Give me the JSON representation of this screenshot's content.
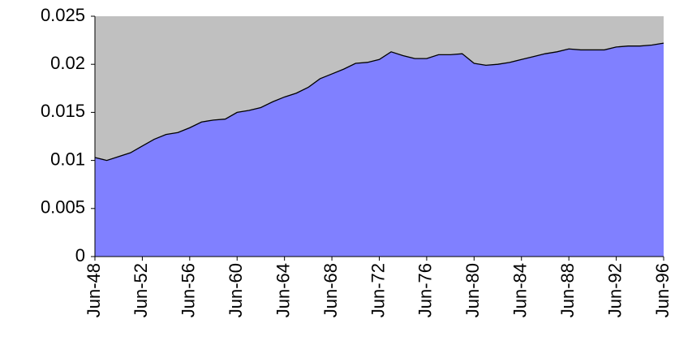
{
  "chart_data": {
    "type": "area",
    "categories": [
      "Jun-48",
      null,
      null,
      null,
      "Jun-52",
      null,
      null,
      null,
      "Jun-56",
      null,
      null,
      null,
      "Jun-60",
      null,
      null,
      null,
      "Jun-64",
      null,
      null,
      null,
      "Jun-68",
      null,
      null,
      null,
      "Jun-72",
      null,
      null,
      null,
      "Jun-76",
      null,
      null,
      null,
      "Jun-80",
      null,
      null,
      null,
      "Jun-84",
      null,
      null,
      null,
      "Jun-88",
      null,
      null,
      null,
      "Jun-92",
      null,
      null,
      null,
      "Jun-96"
    ],
    "values": [
      0.0103,
      0.01,
      0.0104,
      0.0108,
      0.0115,
      0.0122,
      0.0127,
      0.0129,
      0.0134,
      0.014,
      0.0142,
      0.0143,
      0.015,
      0.0152,
      0.0155,
      0.0161,
      0.0166,
      0.017,
      0.0176,
      0.0185,
      0.019,
      0.0195,
      0.0201,
      0.0202,
      0.0205,
      0.0213,
      0.0209,
      0.0206,
      0.0206,
      0.021,
      0.021,
      0.0211,
      0.0201,
      0.0199,
      0.02,
      0.0202,
      0.0205,
      0.0208,
      0.0211,
      0.0213,
      0.0216,
      0.0215,
      0.0215,
      0.0215,
      0.0218,
      0.0219,
      0.0219,
      0.022,
      0.0222
    ],
    "color": "#8080ff",
    "line_color": "#000000",
    "plot_background": "#c0c0c0",
    "ylim": [
      0,
      0.025
    ],
    "yticks": [
      0,
      0.005,
      0.01,
      0.015,
      0.02,
      0.025
    ]
  }
}
